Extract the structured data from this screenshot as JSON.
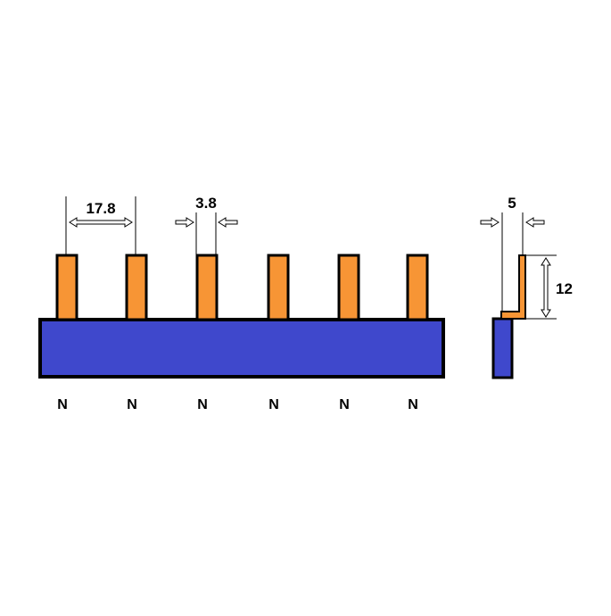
{
  "colors": {
    "background": "#ffffff",
    "bar_fill": "#3f48cc",
    "pin_fill": "#f79535",
    "outline": "#000000"
  },
  "dimensions": {
    "pitch": "17.8",
    "pin_width": "3.8",
    "side_thickness": "5",
    "pin_height": "12"
  },
  "pins": [
    {
      "label": "N"
    },
    {
      "label": "N"
    },
    {
      "label": "N"
    },
    {
      "label": "N"
    },
    {
      "label": "N"
    },
    {
      "label": "N"
    }
  ]
}
